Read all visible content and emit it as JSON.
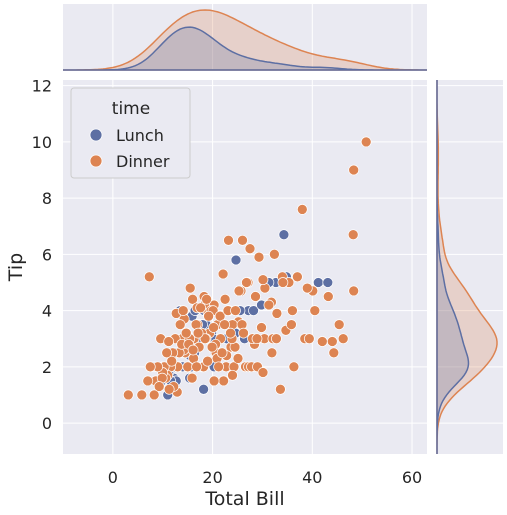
{
  "chart_data": {
    "type": "scatter",
    "title": "",
    "xlabel": "Total Bill",
    "ylabel": "Tip",
    "xlim": [
      -10,
      63
    ],
    "ylim": [
      -1.1,
      12.2
    ],
    "xticks": [
      "0",
      "20",
      "40",
      "60"
    ],
    "yticks": [
      "0",
      "2",
      "4",
      "6",
      "8",
      "10",
      "12"
    ],
    "grid": true,
    "legend": {
      "title": "time",
      "position": "top-left"
    },
    "colors": {
      "Lunch": "#5d6fa3",
      "Dinner": "#dd8452",
      "background": "#eaeaf2"
    },
    "marginals": [
      "top: x density by time",
      "right: y density by time"
    ],
    "series": [
      {
        "name": "Lunch",
        "points": [
          [
            27.2,
            4.0
          ],
          [
            22.8,
            3.0
          ],
          [
            12.0,
            1.5
          ],
          [
            8.3,
            2.0
          ],
          [
            15.0,
            2.0
          ],
          [
            12.2,
            1.6
          ],
          [
            13.4,
            2.0
          ],
          [
            10.1,
            2.0
          ],
          [
            16.4,
            2.5
          ],
          [
            14.0,
            3.0
          ],
          [
            19.8,
            3.2
          ],
          [
            11.0,
            1.0
          ],
          [
            12.6,
            2.5
          ],
          [
            15.9,
            3.8
          ],
          [
            15.5,
            2.4
          ],
          [
            10.3,
            2.0
          ],
          [
            13.0,
            2.0
          ],
          [
            18.0,
            2.0
          ],
          [
            24.6,
            3.2
          ],
          [
            34.8,
            5.2
          ],
          [
            32.7,
            5.0
          ],
          [
            16.3,
            2.0
          ],
          [
            13.8,
            2.0
          ],
          [
            11.2,
            1.8
          ],
          [
            16.5,
            4.0
          ],
          [
            41.2,
            5.0
          ],
          [
            43.1,
            5.0
          ],
          [
            28.2,
            4.0
          ],
          [
            25.5,
            4.0
          ],
          [
            12.2,
            2.0
          ],
          [
            29.8,
            4.2
          ],
          [
            13.5,
            4.0
          ],
          [
            15.7,
            3.0
          ],
          [
            17.9,
            3.5
          ],
          [
            12.7,
            1.5
          ],
          [
            20.0,
            3.0
          ],
          [
            15.4,
            1.6
          ],
          [
            18.7,
            3.5
          ],
          [
            10.1,
            2.0
          ],
          [
            13.4,
            3.9
          ],
          [
            16.0,
            2.0
          ],
          [
            20.5,
            2.5
          ],
          [
            7.8,
            2.0
          ],
          [
            24.7,
            5.8
          ],
          [
            17.5,
            3.5
          ],
          [
            20.3,
            2.0
          ],
          [
            16.6,
            3.0
          ],
          [
            19.5,
            3.0
          ],
          [
            18.0,
            3.5
          ],
          [
            13.9,
            2.5
          ],
          [
            26.4,
            3.0
          ],
          [
            14.0,
            2.0
          ],
          [
            17.5,
            3.0
          ],
          [
            16.3,
            3.0
          ],
          [
            34.3,
            6.7
          ],
          [
            11.6,
            1.5
          ],
          [
            19.9,
            3.0
          ],
          [
            24.1,
            2.0
          ],
          [
            15.8,
            2.0
          ],
          [
            23.3,
            4.0
          ],
          [
            20.7,
            2.5
          ],
          [
            11.0,
            2.0
          ],
          [
            12.3,
            2.0
          ],
          [
            31.3,
            5.0
          ],
          [
            20.1,
            3.0
          ],
          [
            18.3,
            4.0
          ],
          [
            9.8,
            1.5
          ],
          [
            18.2,
            1.2
          ]
        ]
      },
      {
        "name": "Dinner",
        "points": [
          [
            50.8,
            10.0
          ],
          [
            48.3,
            9.0
          ],
          [
            44.3,
            2.5
          ],
          [
            48.2,
            6.7
          ],
          [
            48.3,
            4.7
          ],
          [
            45.4,
            3.5
          ],
          [
            38.0,
            7.6
          ],
          [
            34.0,
            5.2
          ],
          [
            40.1,
            4.7
          ],
          [
            38.5,
            3.0
          ],
          [
            39.4,
            3.0
          ],
          [
            35.3,
            5.0
          ],
          [
            32.4,
            6.0
          ],
          [
            30.5,
            4.8
          ],
          [
            30.1,
            5.1
          ],
          [
            31.8,
            4.3
          ],
          [
            29.8,
            3.4
          ],
          [
            28.4,
            2.8
          ],
          [
            27.1,
            5.0
          ],
          [
            26.8,
            5.0
          ],
          [
            25.7,
            4.7
          ],
          [
            23.2,
            6.5
          ],
          [
            22.1,
            5.3
          ],
          [
            23.7,
            2.7
          ],
          [
            24.5,
            2.7
          ],
          [
            25.2,
            3.6
          ],
          [
            26.0,
            6.5
          ],
          [
            27.5,
            6.2
          ],
          [
            24.0,
            3.5
          ],
          [
            22.8,
            2.4
          ],
          [
            21.6,
            3.0
          ],
          [
            20.3,
            4.2
          ],
          [
            20.7,
            2.5
          ],
          [
            21.0,
            3.5
          ],
          [
            19.4,
            3.2
          ],
          [
            20.9,
            2.3
          ],
          [
            18.4,
            4.2
          ],
          [
            19.1,
            3.9
          ],
          [
            18.0,
            2.0
          ],
          [
            17.0,
            3.5
          ],
          [
            17.8,
            3.2
          ],
          [
            18.3,
            4.5
          ],
          [
            16.0,
            4.4
          ],
          [
            16.3,
            3.0
          ],
          [
            15.7,
            2.5
          ],
          [
            15.0,
            2.0
          ],
          [
            14.8,
            3.2
          ],
          [
            14.5,
            2.5
          ],
          [
            14.2,
            2.6
          ],
          [
            13.9,
            3.0
          ],
          [
            13.3,
            2.5
          ],
          [
            13.0,
            2.0
          ],
          [
            12.5,
            3.0
          ],
          [
            12.0,
            2.5
          ],
          [
            11.6,
            2.0
          ],
          [
            11.0,
            1.7
          ],
          [
            10.6,
            1.6
          ],
          [
            10.3,
            2.0
          ],
          [
            10.0,
            1.8
          ],
          [
            9.6,
            3.0
          ],
          [
            9.0,
            2.0
          ],
          [
            8.6,
            1.5
          ],
          [
            8.3,
            1.0
          ],
          [
            7.5,
            2.0
          ],
          [
            7.3,
            5.2
          ],
          [
            7.0,
            1.5
          ],
          [
            5.8,
            1.0
          ],
          [
            3.1,
            1.0
          ],
          [
            11.2,
            2.9
          ],
          [
            12.9,
            1.1
          ],
          [
            13.8,
            2.8
          ],
          [
            14.3,
            3.7
          ],
          [
            15.4,
            3.0
          ],
          [
            16.2,
            2.3
          ],
          [
            16.9,
            4.1
          ],
          [
            17.3,
            2.7
          ],
          [
            18.7,
            3.0
          ],
          [
            19.7,
            4.0
          ],
          [
            20.1,
            4.0
          ],
          [
            20.6,
            2.8
          ],
          [
            21.5,
            3.8
          ],
          [
            22.4,
            3.5
          ],
          [
            22.7,
            2.0
          ],
          [
            23.1,
            4.0
          ],
          [
            23.9,
            3.0
          ],
          [
            24.3,
            2.0
          ],
          [
            24.6,
            4.0
          ],
          [
            25.3,
            4.7
          ],
          [
            25.9,
            3.5
          ],
          [
            26.6,
            2.0
          ],
          [
            27.2,
            2.0
          ],
          [
            28.0,
            3.0
          ],
          [
            28.6,
            4.5
          ],
          [
            29.3,
            5.9
          ],
          [
            30.4,
            3.0
          ],
          [
            31.3,
            4.2
          ],
          [
            32.1,
            3.0
          ],
          [
            32.8,
            3.0
          ],
          [
            33.6,
            1.2
          ],
          [
            34.7,
            3.3
          ],
          [
            36.0,
            4.0
          ],
          [
            37.0,
            5.2
          ],
          [
            39.0,
            4.8
          ],
          [
            42.0,
            2.9
          ],
          [
            43.2,
            4.5
          ],
          [
            44.0,
            2.9
          ],
          [
            46.2,
            3.0
          ],
          [
            22.2,
            1.5
          ],
          [
            18.2,
            2.0
          ],
          [
            16.7,
            3.5
          ],
          [
            17.6,
            4.1
          ],
          [
            19.0,
            2.2
          ],
          [
            20.3,
            1.5
          ],
          [
            21.2,
            2.0
          ],
          [
            15.9,
            1.6
          ],
          [
            15.2,
            2.8
          ],
          [
            14.7,
            3.2
          ],
          [
            13.5,
            3.5
          ],
          [
            12.7,
            3.9
          ],
          [
            12.2,
            1.3
          ],
          [
            11.8,
            2.2
          ],
          [
            11.3,
            1.2
          ],
          [
            10.8,
            2.5
          ],
          [
            9.9,
            1.6
          ],
          [
            9.3,
            1.3
          ],
          [
            18.5,
            3.0
          ],
          [
            17.1,
            3.2
          ],
          [
            16.1,
            2.6
          ],
          [
            19.9,
            2.7
          ],
          [
            20.2,
            3.4
          ],
          [
            21.9,
            2.5
          ],
          [
            23.6,
            3.2
          ],
          [
            24.0,
            1.7
          ],
          [
            25.1,
            2.3
          ],
          [
            27.8,
            2.0
          ],
          [
            29.0,
            2.0
          ],
          [
            30.1,
            1.8
          ],
          [
            31.9,
            2.5
          ],
          [
            36.3,
            2.0
          ],
          [
            35.8,
            3.5
          ],
          [
            40.5,
            4.0
          ],
          [
            18.8,
            4.4
          ],
          [
            15.5,
            4.8
          ],
          [
            14.1,
            4.0
          ],
          [
            16.8,
            2.0
          ],
          [
            19.2,
            3.8
          ],
          [
            22.5,
            4.4
          ],
          [
            26.2,
            3.2
          ],
          [
            28.9,
            3.0
          ],
          [
            34.1,
            5.0
          ],
          [
            32.9,
            3.9
          ]
        ]
      }
    ]
  }
}
